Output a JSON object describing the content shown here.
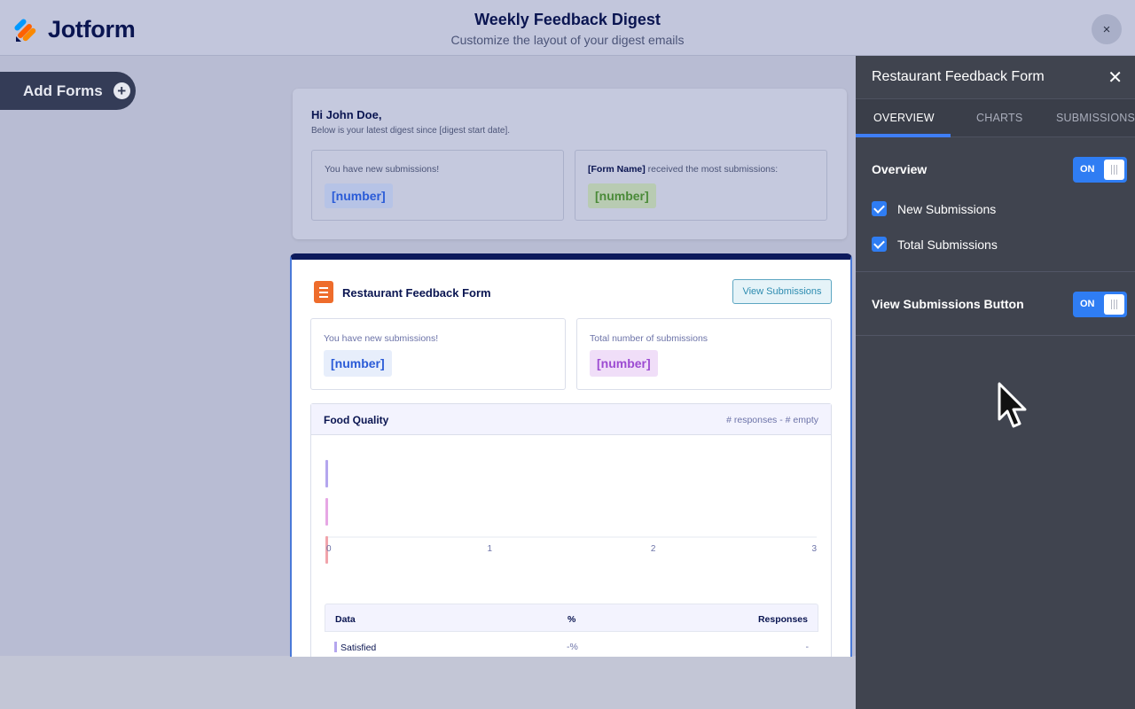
{
  "header": {
    "logo_text": "Jotform",
    "title": "Weekly Feedback Digest",
    "subtitle": "Customize the layout of your digest emails",
    "close_label": "×"
  },
  "sidebar": {
    "add_forms_label": "Add Forms",
    "add_icon": "+"
  },
  "digest_intro": {
    "greeting": "Hi John Doe,",
    "subtext": "Below is your latest digest since [digest start date].",
    "box1_label": "You have new submissions!",
    "box1_value": "[number]",
    "box2_label_strong": "[Form Name]",
    "box2_label_rest": " received the most submissions:",
    "box2_value": "[number]"
  },
  "form_card": {
    "title": "Restaurant Feedback Form",
    "view_button": "View Submissions",
    "box1_label": "You have new submissions!",
    "box1_value": "[number]",
    "box2_label": "Total number of submissions",
    "box2_value": "[number]",
    "chart_title": "Food Quality",
    "chart_meta": "# responses - # empty",
    "table": {
      "headers": [
        "Data",
        "%",
        "Responses"
      ],
      "rows": [
        {
          "label": "Satisfied",
          "percent": "-%",
          "responses": "-"
        }
      ]
    }
  },
  "chart_data": {
    "type": "bar",
    "orientation": "horizontal",
    "title": "Food Quality",
    "categories": [
      "",
      "",
      ""
    ],
    "values": [
      0,
      0,
      0
    ],
    "colors": [
      "#b4a6ee",
      "#e6a7e4",
      "#f1a4ab"
    ],
    "xlim": [
      0,
      3
    ],
    "xticks": [
      "0",
      "1",
      "2",
      "3"
    ]
  },
  "panel": {
    "title": "Restaurant Feedback Form",
    "close_label": "✕",
    "tabs": [
      "OVERVIEW",
      "CHARTS",
      "SUBMISSIONS"
    ],
    "active_tab": "OVERVIEW",
    "overview_label": "Overview",
    "overview_toggle": "ON",
    "checks": [
      {
        "label": "New Submissions",
        "checked": true
      },
      {
        "label": "Total Submissions",
        "checked": true
      }
    ],
    "view_button_label": "View Submissions Button",
    "view_button_toggle": "ON"
  },
  "colors": {
    "accent_blue": "#2f7df3",
    "navy": "#0a1551",
    "orange": "#ee6c2b",
    "panel_bg": "#40444f"
  }
}
